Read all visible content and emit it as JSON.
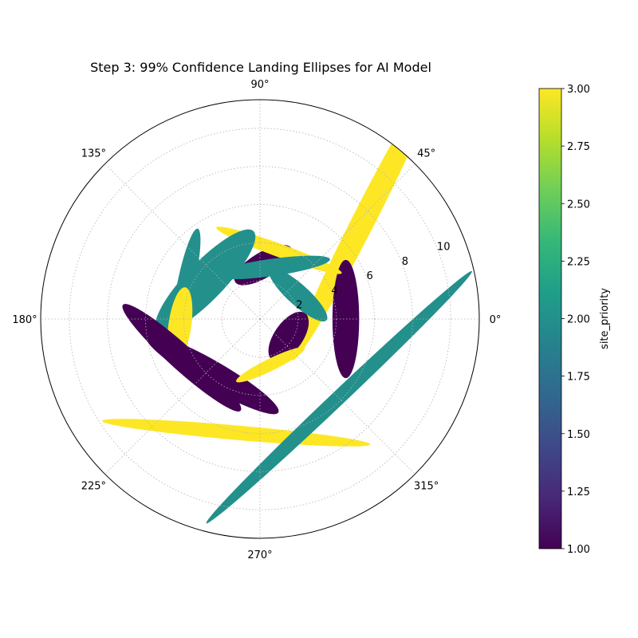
{
  "chart_data": {
    "type": "polar-ellipses",
    "title": "Step 3: 99% Confidence Landing Ellipses for AI Model",
    "r_max": 11.5,
    "r_ticks": [
      2,
      4,
      6,
      8,
      10
    ],
    "r_tick_labels": [
      "2",
      "4",
      "6",
      "8",
      "10"
    ],
    "r_label_angle_deg": 22.5,
    "theta_ticks_deg": [
      0,
      45,
      90,
      135,
      180,
      225,
      270,
      315
    ],
    "theta_tick_labels": [
      "0°",
      "45°",
      "90°",
      "135°",
      "180°",
      "225°",
      "270°",
      "315°"
    ],
    "grid": true,
    "colorbar": {
      "label": "site_priority",
      "min": 1.0,
      "max": 3.0,
      "ticks": [
        1.0,
        1.25,
        1.5,
        1.75,
        2.0,
        2.25,
        2.5,
        2.75,
        3.0
      ],
      "tick_labels": [
        "1.00",
        "1.25",
        "1.50",
        "1.75",
        "2.00",
        "2.25",
        "2.50",
        "2.75",
        "3.00"
      ],
      "colormap_stops": [
        "#440154",
        "#482878",
        "#3e4989",
        "#31688e",
        "#26828e",
        "#1f9e89",
        "#35b779",
        "#6ece58",
        "#b5de2b",
        "#fde725"
      ]
    },
    "ellipses": [
      {
        "cx": 5.52,
        "cy": 5.34,
        "rx": 8.42,
        "ry": 0.6,
        "angle": 63,
        "priority": 3
      },
      {
        "cx": 4.5,
        "cy": 0.0,
        "rx": 3.1,
        "ry": 0.7,
        "angle": 90,
        "priority": 1
      },
      {
        "cx": 1.5,
        "cy": -0.92,
        "rx": 1.5,
        "ry": 0.75,
        "angle": 55,
        "priority": 1
      },
      {
        "cx": 2.0,
        "cy": 1.27,
        "rx": 2.0,
        "ry": 0.55,
        "angle": -42,
        "priority": 2
      },
      {
        "cx": 0.17,
        "cy": 2.83,
        "rx": 1.72,
        "ry": 0.67,
        "angle": 31,
        "priority": 1
      },
      {
        "cx": 1.0,
        "cy": 3.6,
        "rx": 3.5,
        "ry": 0.35,
        "angle": -20,
        "priority": 3
      },
      {
        "cx": 0.6,
        "cy": 2.7,
        "rx": 3.1,
        "ry": 0.45,
        "angle": 8,
        "priority": 2
      },
      {
        "cx": -2.87,
        "cy": 1.99,
        "rx": 3.64,
        "ry": 1.0,
        "angle": 46,
        "priority": 2
      },
      {
        "cx": -3.85,
        "cy": 2.0,
        "rx": 2.8,
        "ry": 0.45,
        "angle": 78,
        "priority": 2
      },
      {
        "cx": -4.2,
        "cy": -0.32,
        "rx": 2.0,
        "ry": 0.6,
        "angle": 82,
        "priority": 3
      },
      {
        "cx": -4.1,
        "cy": -2.03,
        "rx": 4.15,
        "ry": 0.65,
        "angle": -42,
        "priority": 1
      },
      {
        "cx": -2.5,
        "cy": -2.9,
        "rx": 4.0,
        "ry": 0.7,
        "angle": -30,
        "priority": 1
      },
      {
        "cx": 0.55,
        "cy": -2.4,
        "rx": 2.0,
        "ry": 0.32,
        "angle": 26,
        "priority": 3
      },
      {
        "cx": -1.25,
        "cy": -5.96,
        "rx": 7.06,
        "ry": 0.38,
        "angle": -5,
        "priority": 3
      },
      {
        "cx": 4.15,
        "cy": -4.1,
        "rx": 9.6,
        "ry": 0.38,
        "angle": 43.5,
        "priority": 2
      }
    ]
  }
}
